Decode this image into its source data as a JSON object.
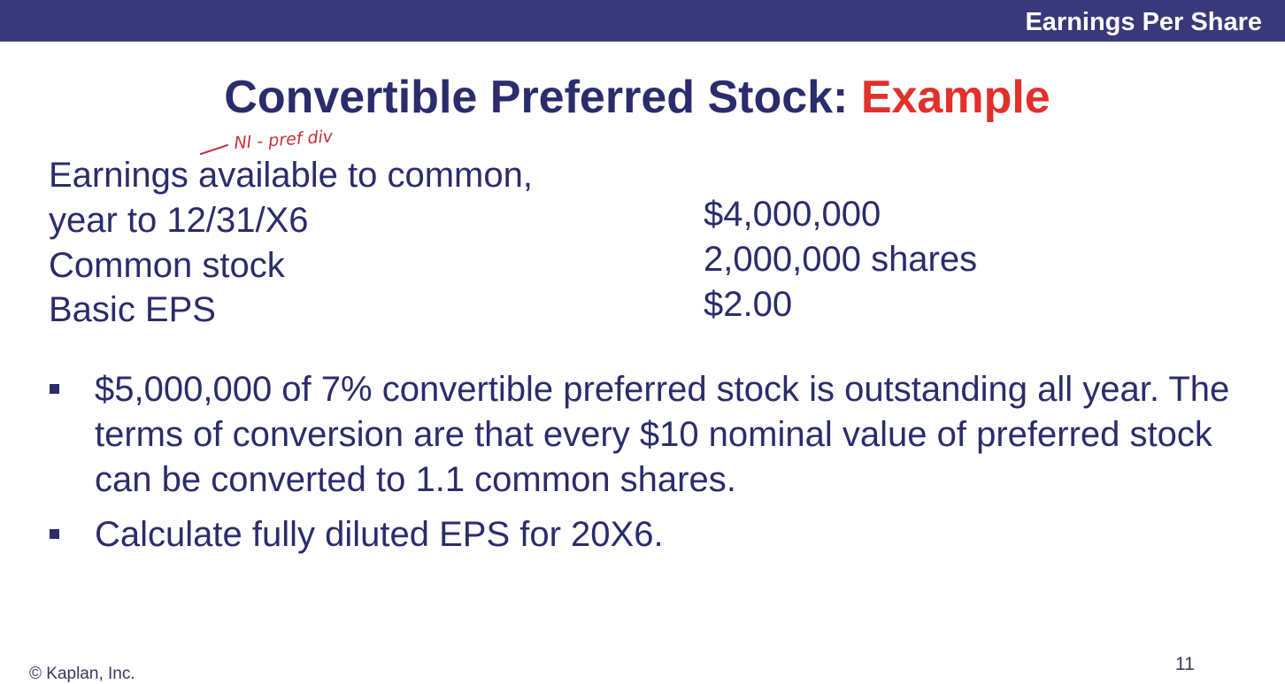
{
  "header": {
    "section_title": "Earnings Per Share"
  },
  "slide": {
    "title_main": "Convertible Preferred Stock:",
    "title_accent": "Example"
  },
  "annotation": {
    "handwritten_note": "NI - pref div"
  },
  "data_table": {
    "rows": [
      {
        "label": "Earnings available to common,",
        "value": ""
      },
      {
        "label": "year to 12/31/X6",
        "value": "$4,000,000"
      },
      {
        "label": "Common stock",
        "value": "2,000,000 shares"
      },
      {
        "label": "Basic EPS",
        "value": "$2.00"
      }
    ]
  },
  "bullets": [
    "$5,000,000 of 7% convertible preferred stock is outstanding all year. The terms of conversion are that every $10 nominal value of preferred stock can be converted to 1.1 common shares.",
    "Calculate fully diluted EPS for 20X6."
  ],
  "footer": {
    "copyright": "© Kaplan, Inc.",
    "page_number": "11"
  },
  "colors": {
    "header_bar": "#38397a",
    "title_text": "#2b2c6c",
    "title_accent": "#e2302a",
    "annotation_ink": "#c8303a"
  }
}
